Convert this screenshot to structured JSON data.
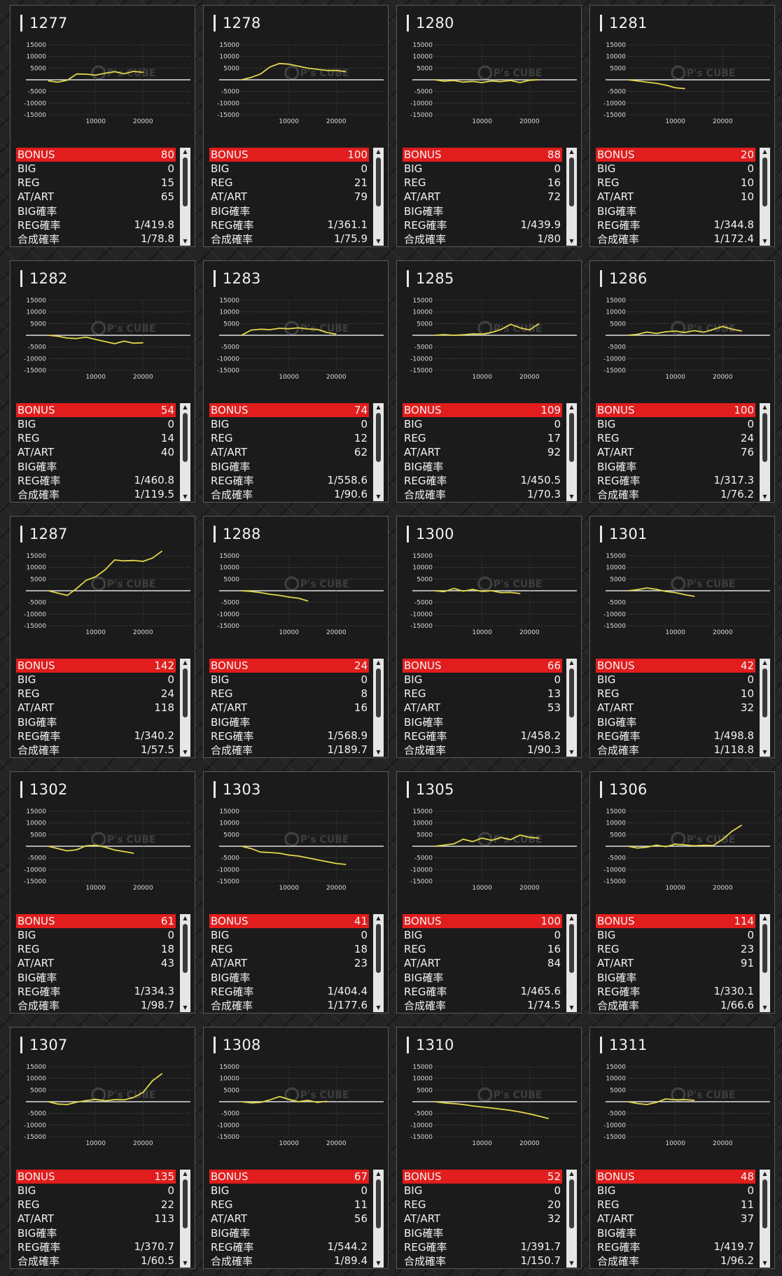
{
  "colors": {
    "accent": "#e11d1d",
    "line": "#e3d64b",
    "panel": "#1b1b1b"
  },
  "labels": {
    "bonus": "BONUS",
    "big": "BIG",
    "reg": "REG",
    "at": "AT/ART",
    "big_rate": "BIG確率",
    "reg_rate": "REG確率",
    "total_rate": "合成確率"
  },
  "axis": {
    "y_ticks": [
      "15000",
      "10000",
      "5000",
      "-5000",
      "-10000",
      "-15000"
    ],
    "x_ticks": [
      "10000",
      "20000"
    ]
  },
  "watermark": "P's CUBE",
  "icons": {
    "scroll_up": "triangle-up-icon",
    "scroll_down": "triangle-down-icon"
  },
  "machines": [
    {
      "id": "1277",
      "bonus": "80",
      "big": "0",
      "reg": "15",
      "at": "65",
      "big_rate": "",
      "reg_rate": "1/419.8",
      "total_rate": "1/78.8",
      "chart_data": {
        "type": "line",
        "xlim": [
          0,
          30000
        ],
        "ylim": [
          -15000,
          15000
        ],
        "x": [
          0,
          2000,
          4000,
          6000,
          8000,
          10000,
          12000,
          14000,
          16000,
          18000,
          20000
        ],
        "y": [
          -500,
          -1000,
          -200,
          2500,
          2400,
          2000,
          2800,
          3500,
          2600,
          3600,
          3200
        ]
      }
    },
    {
      "id": "1278",
      "bonus": "100",
      "big": "0",
      "reg": "21",
      "at": "79",
      "big_rate": "",
      "reg_rate": "1/361.1",
      "total_rate": "1/75.9",
      "chart_data": {
        "type": "line",
        "xlim": [
          0,
          30000
        ],
        "ylim": [
          -15000,
          15000
        ],
        "x": [
          0,
          2000,
          4000,
          6000,
          8000,
          10000,
          12000,
          14000,
          16000,
          18000,
          20000,
          22000
        ],
        "y": [
          0,
          1000,
          2500,
          5500,
          7000,
          6700,
          5800,
          5000,
          4500,
          4000,
          4000,
          3500
        ]
      }
    },
    {
      "id": "1280",
      "bonus": "88",
      "big": "0",
      "reg": "16",
      "at": "72",
      "big_rate": "",
      "reg_rate": "1/439.9",
      "total_rate": "1/80",
      "chart_data": {
        "type": "line",
        "xlim": [
          0,
          30000
        ],
        "ylim": [
          -15000,
          15000
        ],
        "x": [
          0,
          2000,
          4000,
          6000,
          8000,
          10000,
          12000,
          14000,
          16000,
          18000,
          20000,
          22000
        ],
        "y": [
          0,
          -600,
          -300,
          -1000,
          -700,
          -1200,
          -500,
          -800,
          -300,
          -1200,
          -200,
          0
        ]
      }
    },
    {
      "id": "1281",
      "bonus": "20",
      "big": "0",
      "reg": "10",
      "at": "10",
      "big_rate": "",
      "reg_rate": "1/344.8",
      "total_rate": "1/172.4",
      "chart_data": {
        "type": "line",
        "xlim": [
          0,
          30000
        ],
        "ylim": [
          -15000,
          15000
        ],
        "x": [
          0,
          2000,
          4000,
          6000,
          8000,
          10000,
          12000
        ],
        "y": [
          0,
          -500,
          -1000,
          -1500,
          -2300,
          -3400,
          -3800
        ]
      }
    },
    {
      "id": "1282",
      "bonus": "54",
      "big": "0",
      "reg": "14",
      "at": "40",
      "big_rate": "",
      "reg_rate": "1/460.8",
      "total_rate": "1/119.5",
      "chart_data": {
        "type": "line",
        "xlim": [
          0,
          30000
        ],
        "ylim": [
          -15000,
          15000
        ],
        "x": [
          0,
          2000,
          4000,
          6000,
          8000,
          10000,
          12000,
          14000,
          16000,
          18000,
          20000
        ],
        "y": [
          0,
          -400,
          -1200,
          -1400,
          -800,
          -1800,
          -2700,
          -3600,
          -2500,
          -3400,
          -3200
        ]
      }
    },
    {
      "id": "1283",
      "bonus": "74",
      "big": "0",
      "reg": "12",
      "at": "62",
      "big_rate": "",
      "reg_rate": "1/558.6",
      "total_rate": "1/90.6",
      "chart_data": {
        "type": "line",
        "xlim": [
          0,
          30000
        ],
        "ylim": [
          -15000,
          15000
        ],
        "x": [
          0,
          2000,
          4000,
          6000,
          8000,
          10000,
          12000,
          14000,
          16000,
          18000,
          20000
        ],
        "y": [
          0,
          2200,
          2600,
          2400,
          3000,
          2800,
          3200,
          2700,
          2500,
          1200,
          500
        ]
      }
    },
    {
      "id": "1285",
      "bonus": "109",
      "big": "0",
      "reg": "17",
      "at": "92",
      "big_rate": "",
      "reg_rate": "1/450.5",
      "total_rate": "1/70.3",
      "chart_data": {
        "type": "line",
        "xlim": [
          0,
          30000
        ],
        "ylim": [
          -15000,
          15000
        ],
        "x": [
          0,
          2000,
          4000,
          6000,
          8000,
          10000,
          12000,
          14000,
          16000,
          18000,
          20000,
          22000
        ],
        "y": [
          0,
          300,
          0,
          200,
          600,
          500,
          1200,
          2500,
          4700,
          3200,
          2300,
          5000
        ]
      }
    },
    {
      "id": "1286",
      "bonus": "100",
      "big": "0",
      "reg": "24",
      "at": "76",
      "big_rate": "",
      "reg_rate": "1/317.3",
      "total_rate": "1/76.2",
      "chart_data": {
        "type": "line",
        "xlim": [
          0,
          30000
        ],
        "ylim": [
          -15000,
          15000
        ],
        "x": [
          0,
          2000,
          4000,
          6000,
          8000,
          10000,
          12000,
          14000,
          16000,
          18000,
          20000,
          22000,
          24000
        ],
        "y": [
          0,
          400,
          1400,
          800,
          1500,
          1800,
          1200,
          2000,
          1300,
          2500,
          3800,
          2600,
          1800
        ]
      }
    },
    {
      "id": "1287",
      "bonus": "142",
      "big": "0",
      "reg": "24",
      "at": "118",
      "big_rate": "",
      "reg_rate": "1/340.2",
      "total_rate": "1/57.5",
      "chart_data": {
        "type": "line",
        "xlim": [
          0,
          30000
        ],
        "ylim": [
          -15000,
          15000
        ],
        "x": [
          0,
          2000,
          4000,
          6000,
          8000,
          10000,
          12000,
          14000,
          16000,
          18000,
          20000,
          22000,
          24000
        ],
        "y": [
          0,
          -1000,
          -2000,
          1000,
          4500,
          6000,
          9000,
          13200,
          12800,
          13000,
          12600,
          14000,
          17000
        ]
      }
    },
    {
      "id": "1288",
      "bonus": "24",
      "big": "0",
      "reg": "8",
      "at": "16",
      "big_rate": "",
      "reg_rate": "1/568.9",
      "total_rate": "1/189.7",
      "chart_data": {
        "type": "line",
        "xlim": [
          0,
          30000
        ],
        "ylim": [
          -15000,
          15000
        ],
        "x": [
          0,
          2000,
          4000,
          6000,
          8000,
          10000,
          12000,
          14000
        ],
        "y": [
          0,
          -300,
          -800,
          -1500,
          -2000,
          -2700,
          -3200,
          -4400
        ]
      }
    },
    {
      "id": "1300",
      "bonus": "66",
      "big": "0",
      "reg": "13",
      "at": "53",
      "big_rate": "",
      "reg_rate": "1/458.2",
      "total_rate": "1/90.3",
      "chart_data": {
        "type": "line",
        "xlim": [
          0,
          30000
        ],
        "ylim": [
          -15000,
          15000
        ],
        "x": [
          0,
          2000,
          4000,
          6000,
          8000,
          10000,
          12000,
          14000,
          16000,
          18000
        ],
        "y": [
          0,
          -400,
          1000,
          -200,
          600,
          -300,
          0,
          -800,
          -700,
          -1200
        ]
      }
    },
    {
      "id": "1301",
      "bonus": "42",
      "big": "0",
      "reg": "10",
      "at": "32",
      "big_rate": "",
      "reg_rate": "1/498.8",
      "total_rate": "1/118.8",
      "chart_data": {
        "type": "line",
        "xlim": [
          0,
          30000
        ],
        "ylim": [
          -15000,
          15000
        ],
        "x": [
          0,
          2000,
          4000,
          6000,
          8000,
          10000,
          12000,
          14000
        ],
        "y": [
          0,
          500,
          1200,
          600,
          -300,
          -800,
          -1700,
          -2400
        ]
      }
    },
    {
      "id": "1302",
      "bonus": "61",
      "big": "0",
      "reg": "18",
      "at": "43",
      "big_rate": "",
      "reg_rate": "1/334.3",
      "total_rate": "1/98.7",
      "chart_data": {
        "type": "line",
        "xlim": [
          0,
          30000
        ],
        "ylim": [
          -15000,
          15000
        ],
        "x": [
          0,
          2000,
          4000,
          6000,
          8000,
          10000,
          12000,
          14000,
          16000,
          18000
        ],
        "y": [
          0,
          -1000,
          -2000,
          -1500,
          200,
          400,
          -400,
          -1600,
          -2300,
          -3000
        ]
      }
    },
    {
      "id": "1303",
      "bonus": "41",
      "big": "0",
      "reg": "18",
      "at": "23",
      "big_rate": "",
      "reg_rate": "1/404.4",
      "total_rate": "1/177.6",
      "chart_data": {
        "type": "line",
        "xlim": [
          0,
          30000
        ],
        "ylim": [
          -15000,
          15000
        ],
        "x": [
          0,
          2000,
          4000,
          6000,
          8000,
          10000,
          12000,
          14000,
          16000,
          18000,
          20000,
          22000
        ],
        "y": [
          0,
          -1000,
          -2500,
          -2700,
          -3000,
          -3800,
          -4200,
          -5000,
          -5800,
          -6600,
          -7400,
          -7800
        ]
      }
    },
    {
      "id": "1305",
      "bonus": "100",
      "big": "0",
      "reg": "16",
      "at": "84",
      "big_rate": "",
      "reg_rate": "1/465.6",
      "total_rate": "1/74.5",
      "chart_data": {
        "type": "line",
        "xlim": [
          0,
          30000
        ],
        "ylim": [
          -15000,
          15000
        ],
        "x": [
          0,
          2000,
          4000,
          6000,
          8000,
          10000,
          12000,
          14000,
          16000,
          18000,
          20000,
          22000
        ],
        "y": [
          0,
          500,
          1000,
          3000,
          2000,
          3500,
          2500,
          3800,
          2800,
          4800,
          3800,
          3500
        ]
      }
    },
    {
      "id": "1306",
      "bonus": "114",
      "big": "0",
      "reg": "23",
      "at": "91",
      "big_rate": "",
      "reg_rate": "1/330.1",
      "total_rate": "1/66.6",
      "chart_data": {
        "type": "line",
        "xlim": [
          0,
          30000
        ],
        "ylim": [
          -15000,
          15000
        ],
        "x": [
          0,
          2000,
          4000,
          6000,
          8000,
          10000,
          12000,
          14000,
          16000,
          18000,
          20000,
          22000,
          24000
        ],
        "y": [
          0,
          -800,
          -400,
          500,
          -200,
          900,
          600,
          200,
          400,
          300,
          3000,
          6500,
          9000
        ]
      }
    },
    {
      "id": "1307",
      "bonus": "135",
      "big": "0",
      "reg": "22",
      "at": "113",
      "big_rate": "",
      "reg_rate": "1/370.7",
      "total_rate": "1/60.5",
      "chart_data": {
        "type": "line",
        "xlim": [
          0,
          30000
        ],
        "ylim": [
          -15000,
          15000
        ],
        "x": [
          0,
          2000,
          4000,
          6000,
          8000,
          10000,
          12000,
          14000,
          16000,
          18000,
          20000,
          22000,
          24000
        ],
        "y": [
          0,
          -1000,
          -1200,
          -200,
          500,
          1000,
          400,
          900,
          800,
          1800,
          4000,
          9000,
          12000
        ]
      }
    },
    {
      "id": "1308",
      "bonus": "67",
      "big": "0",
      "reg": "11",
      "at": "56",
      "big_rate": "",
      "reg_rate": "1/544.2",
      "total_rate": "1/89.4",
      "chart_data": {
        "type": "line",
        "xlim": [
          0,
          30000
        ],
        "ylim": [
          -15000,
          15000
        ],
        "x": [
          0,
          2000,
          4000,
          6000,
          8000,
          10000,
          12000,
          14000,
          16000,
          18000
        ],
        "y": [
          0,
          -500,
          -300,
          800,
          2200,
          1000,
          0,
          600,
          -300,
          200
        ]
      }
    },
    {
      "id": "1310",
      "bonus": "52",
      "big": "0",
      "reg": "20",
      "at": "32",
      "big_rate": "",
      "reg_rate": "1/391.7",
      "total_rate": "1/150.7",
      "chart_data": {
        "type": "line",
        "xlim": [
          0,
          30000
        ],
        "ylim": [
          -15000,
          15000
        ],
        "x": [
          0,
          2000,
          4000,
          6000,
          8000,
          10000,
          12000,
          14000,
          16000,
          18000,
          20000,
          22000,
          24000
        ],
        "y": [
          0,
          -500,
          -800,
          -1200,
          -1800,
          -2300,
          -2700,
          -3200,
          -3700,
          -4400,
          -5200,
          -6200,
          -7200
        ]
      }
    },
    {
      "id": "1311",
      "bonus": "48",
      "big": "0",
      "reg": "11",
      "at": "37",
      "big_rate": "",
      "reg_rate": "1/419.7",
      "total_rate": "1/96.2",
      "chart_data": {
        "type": "line",
        "xlim": [
          0,
          30000
        ],
        "ylim": [
          -15000,
          15000
        ],
        "x": [
          0,
          2000,
          4000,
          6000,
          8000,
          10000,
          12000,
          14000
        ],
        "y": [
          0,
          -800,
          -1200,
          -300,
          1200,
          800,
          900,
          600
        ]
      }
    }
  ]
}
